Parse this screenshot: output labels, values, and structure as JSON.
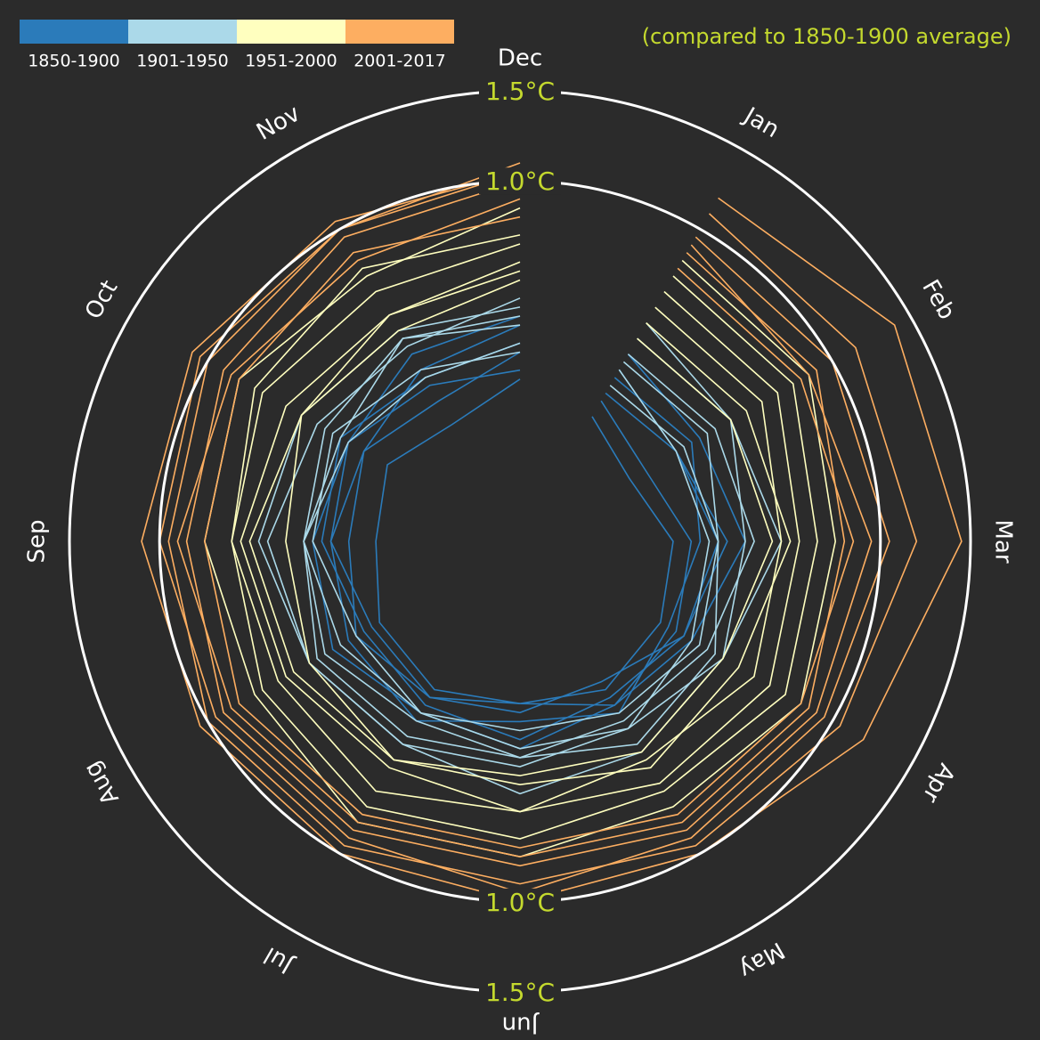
{
  "chart_data": {
    "type": "radial-line",
    "subtitle": "(compared to 1850-1900 average)",
    "categories": [
      "Jan",
      "Feb",
      "Mar",
      "Apr",
      "May",
      "Jun",
      "Jul",
      "Aug",
      "Sep",
      "Oct",
      "Nov",
      "Dec"
    ],
    "rlim": [
      -1,
      1.5
    ],
    "rticks": [
      {
        "value": 1.0,
        "label": "1.0°C"
      },
      {
        "value": 1.5,
        "label": "1.5°C"
      }
    ],
    "legend": [
      {
        "label": "1850-1900",
        "color": "#2b7bba"
      },
      {
        "label": "1901-1950",
        "color": "#abd9e9"
      },
      {
        "label": "1951-2000",
        "color": "#ffffbf"
      },
      {
        "label": "2001-2017",
        "color": "#fdae61"
      }
    ],
    "series": [
      {
        "color": "#2b7bba",
        "values": [
          -0.1,
          -0.2,
          -0.05,
          0.0,
          0.05,
          -0.1,
          0.0,
          0.05,
          -0.05,
          0.0,
          -0.1,
          0.05
        ]
      },
      {
        "color": "#2b7bba",
        "values": [
          0.1,
          0.0,
          0.15,
          0.05,
          0.0,
          0.1,
          0.05,
          0.0,
          0.1,
          0.15,
          0.05,
          0.1
        ]
      },
      {
        "color": "#2b7bba",
        "values": [
          -0.2,
          -0.3,
          -0.15,
          -0.1,
          -0.05,
          -0.1,
          -0.05,
          -0.1,
          -0.2,
          -0.15,
          -0.25,
          -0.1
        ]
      },
      {
        "color": "#2b7bba",
        "values": [
          0.05,
          0.1,
          0.0,
          -0.05,
          0.1,
          0.0,
          0.15,
          0.1,
          0.05,
          0.0,
          0.1,
          0.2
        ]
      },
      {
        "color": "#2b7bba",
        "values": [
          -0.05,
          0.0,
          0.1,
          0.05,
          -0.1,
          -0.05,
          0.0,
          -0.05,
          0.05,
          0.1,
          0.0,
          -0.05
        ]
      },
      {
        "color": "#2b7bba",
        "values": [
          0.2,
          0.15,
          0.25,
          0.1,
          0.05,
          0.15,
          0.1,
          0.2,
          0.15,
          0.1,
          0.2,
          0.25
        ]
      },
      {
        "color": "#abd9e9",
        "values": [
          0.0,
          0.05,
          0.1,
          0.15,
          0.1,
          0.05,
          0.1,
          0.15,
          0.2,
          0.1,
          0.05,
          0.1
        ]
      },
      {
        "color": "#abd9e9",
        "values": [
          0.2,
          0.25,
          0.3,
          0.2,
          0.15,
          0.2,
          0.25,
          0.3,
          0.2,
          0.25,
          0.3,
          0.2
        ]
      },
      {
        "color": "#abd9e9",
        "values": [
          0.1,
          0.0,
          0.05,
          0.1,
          0.2,
          0.15,
          0.1,
          0.05,
          0.15,
          0.2,
          0.1,
          0.05
        ]
      },
      {
        "color": "#abd9e9",
        "values": [
          0.3,
          0.35,
          0.25,
          0.3,
          0.2,
          0.25,
          0.3,
          0.35,
          0.4,
          0.3,
          0.25,
          0.35
        ]
      },
      {
        "color": "#abd9e9",
        "values": [
          0.15,
          0.2,
          0.1,
          0.25,
          0.3,
          0.2,
          0.15,
          0.25,
          0.2,
          0.15,
          0.3,
          0.25
        ]
      },
      {
        "color": "#abd9e9",
        "values": [
          0.4,
          0.35,
          0.45,
          0.3,
          0.35,
          0.4,
          0.3,
          0.35,
          0.45,
          0.4,
          0.35,
          0.3
        ]
      },
      {
        "color": "#ffffbf",
        "values": [
          0.3,
          0.35,
          0.4,
          0.3,
          0.35,
          0.3,
          0.4,
          0.35,
          0.3,
          0.4,
          0.35,
          0.45
        ]
      },
      {
        "color": "#ffffbf",
        "values": [
          0.4,
          0.45,
          0.5,
          0.4,
          0.45,
          0.35,
          0.4,
          0.45,
          0.5,
          0.4,
          0.45,
          0.5
        ]
      },
      {
        "color": "#ffffbf",
        "values": [
          0.5,
          0.55,
          0.45,
          0.5,
          0.4,
          0.5,
          0.45,
          0.5,
          0.55,
          0.5,
          0.45,
          0.55
        ]
      },
      {
        "color": "#ffffbf",
        "values": [
          0.6,
          0.65,
          0.55,
          0.6,
          0.55,
          0.5,
          0.6,
          0.55,
          0.6,
          0.65,
          0.6,
          0.65
        ]
      },
      {
        "color": "#ffffbf",
        "values": [
          0.7,
          0.75,
          0.65,
          0.7,
          0.6,
          0.65,
          0.7,
          0.65,
          0.6,
          0.7,
          0.75,
          0.7
        ]
      },
      {
        "color": "#ffffbf",
        "values": [
          0.8,
          0.85,
          0.75,
          0.8,
          0.7,
          0.75,
          0.8,
          0.7,
          0.75,
          0.8,
          0.7,
          0.85
        ]
      },
      {
        "color": "#fdae61",
        "values": [
          0.75,
          0.8,
          0.85,
          0.8,
          0.75,
          0.7,
          0.75,
          0.8,
          0.75,
          0.8,
          0.85,
          0.8
        ]
      },
      {
        "color": "#fdae61",
        "values": [
          0.85,
          0.9,
          0.8,
          0.85,
          0.8,
          0.75,
          0.8,
          0.85,
          0.9,
          0.85,
          0.8,
          0.9
        ]
      },
      {
        "color": "#fdae61",
        "values": [
          0.9,
          0.85,
          0.95,
          0.9,
          0.85,
          0.8,
          0.85,
          0.9,
          0.85,
          0.9,
          0.95,
          1.0
        ]
      },
      {
        "color": "#fdae61",
        "values": [
          0.95,
          1.0,
          1.05,
          0.95,
          0.9,
          0.95,
          0.9,
          0.95,
          1.0,
          1.05,
          1.0,
          1.1
        ]
      },
      {
        "color": "#fdae61",
        "values": [
          1.2,
          1.4,
          1.45,
          1.2,
          1.0,
          1.0,
          1.0,
          1.05,
          1.1,
          1.1,
          1.05,
          1.05
        ]
      },
      {
        "color": "#fdae61",
        "values": [
          1.1,
          1.15,
          1.2,
          1.05,
          0.95,
          0.9,
          0.95,
          1.0,
          0.95,
          1.0,
          1.0,
          1.05
        ]
      }
    ]
  }
}
